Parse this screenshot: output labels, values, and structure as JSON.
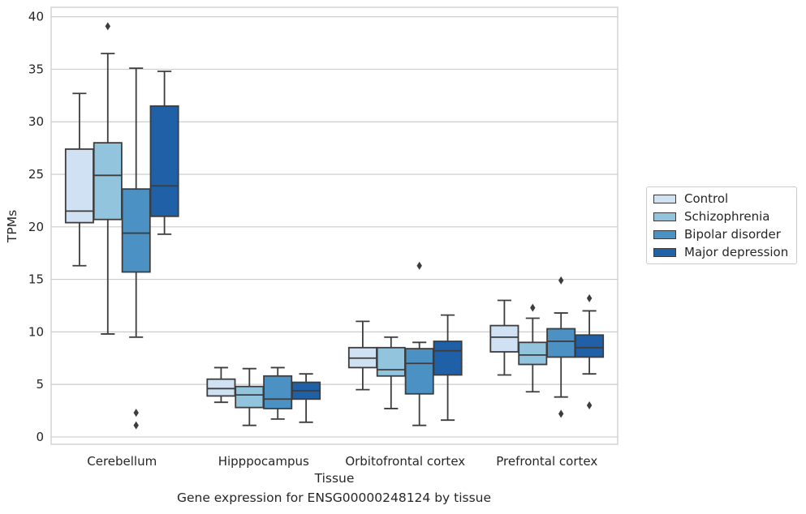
{
  "chart_data": {
    "type": "box",
    "title": "",
    "caption": "Gene expression for ENSG00000248124 by tissue",
    "xlabel": "Tissue",
    "ylabel": "TPMs",
    "ylim": [
      -0.7,
      40.9
    ],
    "yticks": [
      0,
      5,
      10,
      15,
      20,
      25,
      30,
      35,
      40
    ],
    "grid": "horizontal",
    "legend_position": "right",
    "categories": [
      "Cerebellum",
      "Hipppocampus",
      "Orbitofrontal cortex",
      "Prefrontal cortex"
    ],
    "series": [
      {
        "name": "Control",
        "color": "#cfe1f2",
        "boxes": [
          {
            "whislo": 16.3,
            "q1": 20.4,
            "med": 21.5,
            "q3": 27.4,
            "whishi": 32.7,
            "fliers": []
          },
          {
            "whislo": 3.3,
            "q1": 3.9,
            "med": 4.6,
            "q3": 5.5,
            "whishi": 6.6,
            "fliers": []
          },
          {
            "whislo": 4.5,
            "q1": 6.6,
            "med": 7.5,
            "q3": 8.5,
            "whishi": 11.0,
            "fliers": []
          },
          {
            "whislo": 5.9,
            "q1": 8.1,
            "med": 9.5,
            "q3": 10.6,
            "whishi": 13.0,
            "fliers": []
          }
        ]
      },
      {
        "name": "Schizophrenia",
        "color": "#93c4de",
        "boxes": [
          {
            "whislo": 9.8,
            "q1": 20.7,
            "med": 24.9,
            "q3": 28.0,
            "whishi": 36.5,
            "fliers": [
              39.1
            ]
          },
          {
            "whislo": 1.1,
            "q1": 2.8,
            "med": 4.0,
            "q3": 4.8,
            "whishi": 6.5,
            "fliers": []
          },
          {
            "whislo": 2.7,
            "q1": 5.8,
            "med": 6.4,
            "q3": 8.5,
            "whishi": 9.5,
            "fliers": []
          },
          {
            "whislo": 4.3,
            "q1": 6.9,
            "med": 7.8,
            "q3": 9.0,
            "whishi": 11.3,
            "fliers": [
              12.3
            ]
          }
        ]
      },
      {
        "name": "Bipolar disorder",
        "color": "#4b91c3",
        "boxes": [
          {
            "whislo": 9.5,
            "q1": 15.7,
            "med": 19.4,
            "q3": 23.6,
            "whishi": 35.1,
            "fliers": [
              2.3,
              1.1
            ]
          },
          {
            "whislo": 1.7,
            "q1": 2.7,
            "med": 3.6,
            "q3": 5.8,
            "whishi": 6.6,
            "fliers": []
          },
          {
            "whislo": 1.1,
            "q1": 4.1,
            "med": 7.0,
            "q3": 8.4,
            "whishi": 9.0,
            "fliers": [
              16.3
            ]
          },
          {
            "whislo": 3.8,
            "q1": 7.6,
            "med": 9.1,
            "q3": 10.3,
            "whishi": 11.8,
            "fliers": [
              14.9,
              2.2
            ]
          }
        ]
      },
      {
        "name": "Major depression",
        "color": "#2060a6",
        "boxes": [
          {
            "whislo": 19.3,
            "q1": 21.0,
            "med": 23.9,
            "q3": 31.5,
            "whishi": 34.8,
            "fliers": []
          },
          {
            "whislo": 1.4,
            "q1": 3.6,
            "med": 4.4,
            "q3": 5.2,
            "whishi": 6.0,
            "fliers": []
          },
          {
            "whislo": 1.6,
            "q1": 5.9,
            "med": 8.2,
            "q3": 9.1,
            "whishi": 11.6,
            "fliers": []
          },
          {
            "whislo": 6.0,
            "q1": 7.6,
            "med": 8.5,
            "q3": 9.7,
            "whishi": 12.0,
            "fliers": [
              13.2,
              3.0
            ]
          }
        ]
      }
    ]
  }
}
